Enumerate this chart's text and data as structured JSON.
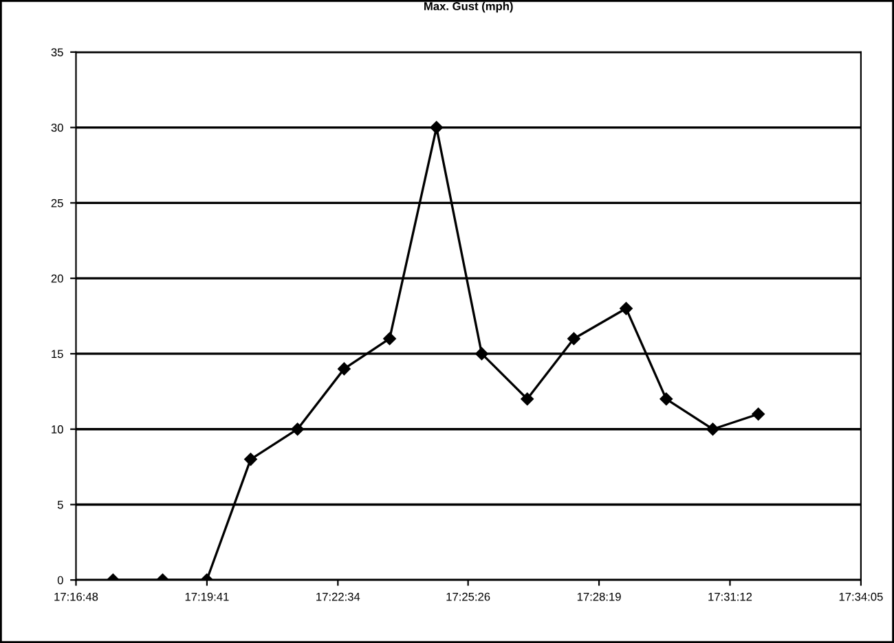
{
  "chart_data": {
    "type": "line",
    "title": "Max. Gust (mph)",
    "x": [
      17.2936,
      17.3118,
      17.328,
      17.3441,
      17.3613,
      17.3784,
      17.3951,
      17.4123,
      17.4289,
      17.4456,
      17.4627,
      17.4819,
      17.4966,
      17.5137,
      17.5304
    ],
    "series": [
      {
        "color": "#000000",
        "values": [
          0,
          0,
          0,
          8,
          10,
          14,
          16,
          30,
          15,
          12,
          16,
          18,
          12,
          10,
          11
        ]
      }
    ],
    "xlim": [
      17.28,
      17.568056
    ],
    "xticks": [
      {
        "value": 17.28,
        "label": "17:16:48"
      },
      {
        "value": 17.328056,
        "label": "17:19:41"
      },
      {
        "value": 17.376111,
        "label": "17:22:34"
      },
      {
        "value": 17.423889,
        "label": "17:25:26"
      },
      {
        "value": 17.471944,
        "label": "17:28:19"
      },
      {
        "value": 17.52,
        "label": "17:31:12"
      },
      {
        "value": 17.568056,
        "label": "17:34:05"
      }
    ],
    "ylim": [
      0,
      35
    ],
    "yticks": [
      0,
      5,
      10,
      15,
      20,
      25,
      30,
      35
    ],
    "grid": "y",
    "marker": "diamond",
    "line_style": "solid",
    "legend": false
  }
}
